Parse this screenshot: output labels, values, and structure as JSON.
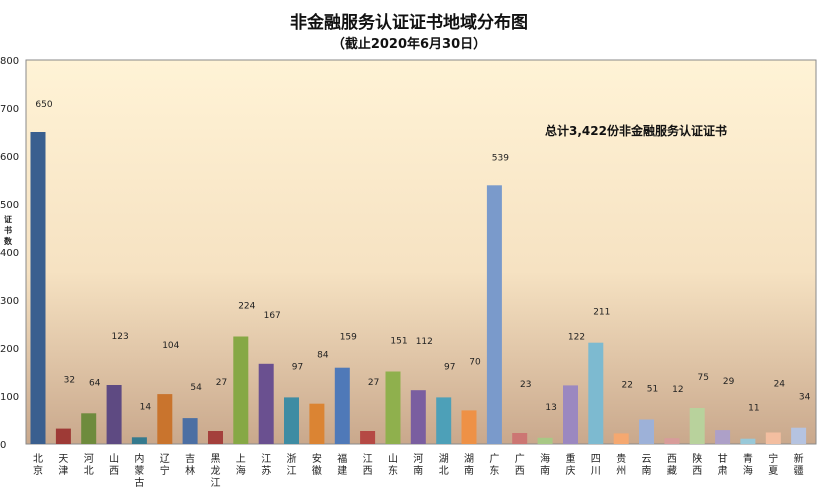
{
  "chart_data": {
    "type": "bar",
    "title": "非金融服务认证证书地域分布图",
    "subtitle": "（截止2020年6月30日）",
    "ylabel": "证书数",
    "xlabel": "",
    "ylim": [
      0,
      800
    ],
    "yticks": [
      0,
      100,
      200,
      300,
      400,
      500,
      600,
      700,
      800
    ],
    "annotation": "总计3,422份非金融服务认证证书",
    "categories": [
      "北京",
      "天津",
      "河北",
      "山西",
      "内蒙古",
      "辽宁",
      "吉林",
      "黑龙江",
      "上海",
      "江苏",
      "浙江",
      "安徽",
      "福建",
      "江西",
      "山东",
      "河南",
      "湖北",
      "湖南",
      "广东",
      "广西",
      "海南",
      "重庆",
      "四川",
      "贵州",
      "云南",
      "西藏",
      "陕西",
      "甘肃",
      "青海",
      "宁夏",
      "新疆"
    ],
    "values": [
      650,
      32,
      64,
      123,
      14,
      104,
      54,
      27,
      224,
      167,
      97,
      84,
      159,
      27,
      151,
      112,
      97,
      70,
      539,
      23,
      13,
      122,
      211,
      22,
      51,
      12,
      75,
      29,
      11,
      24,
      34
    ],
    "colors": [
      "#3A5F8F",
      "#9E3A36",
      "#6E8B3D",
      "#5E4A82",
      "#357A8E",
      "#C9742D",
      "#4C6FA3",
      "#A4403C",
      "#86A845",
      "#6A5090",
      "#3E8CA3",
      "#DB8433",
      "#4F79B8",
      "#B54944",
      "#8FB04D",
      "#7A5EA0",
      "#4DA0B8",
      "#EE9146",
      "#7A9ACB",
      "#CC7673",
      "#A8C885",
      "#9B88C0",
      "#7DBAD0",
      "#F5A870",
      "#9DB1D8",
      "#D89C9A",
      "#B8D29C",
      "#ADA0C8",
      "#98C8D8",
      "#F3BEA0",
      "#B5C3E0"
    ],
    "grid": false
  }
}
